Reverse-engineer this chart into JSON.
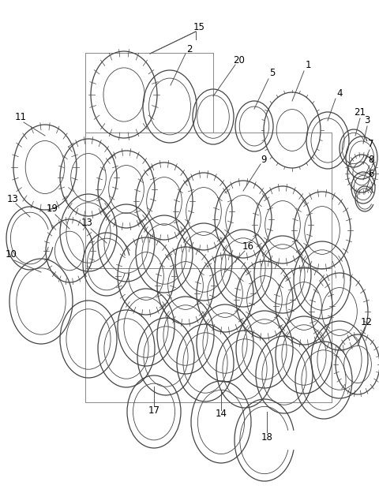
{
  "background_color": "#ffffff",
  "line_color": "#444444",
  "label_color": "#000000",
  "label_fontsize": 8.5,
  "fig_width": 4.8,
  "fig_height": 6.25,
  "dpi": 100
}
